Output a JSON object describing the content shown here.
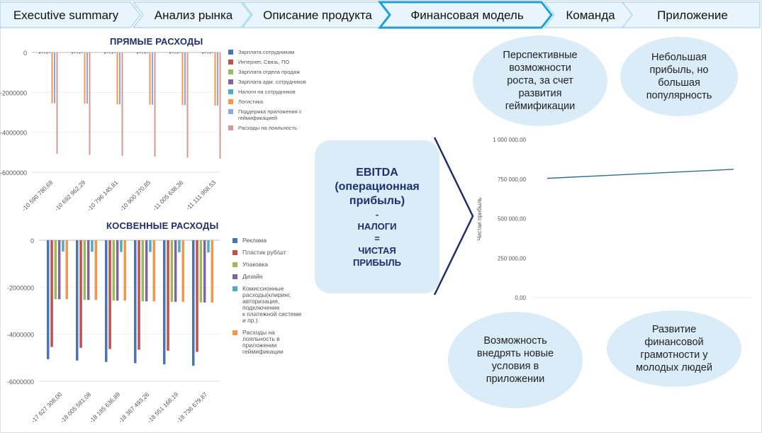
{
  "nav": {
    "tabs": [
      {
        "label": "Executive summary"
      },
      {
        "label": "Анализ рынка"
      },
      {
        "label": "Описание продукта"
      },
      {
        "label": "Финансовая модель",
        "active": true
      },
      {
        "label": "Команда"
      },
      {
        "label": "Приложение"
      }
    ],
    "colors": {
      "fill": "#e9f5fc",
      "stroke": "#9fd3ec",
      "active_stroke": "#1aa0d8"
    }
  },
  "ebitda_box": {
    "line1": "EBITDA",
    "line2": "(операционная",
    "line3": "прибыль)",
    "line4": "-",
    "line5": "НАЛОГИ",
    "line6": "=",
    "line7": "ЧИСТАЯ",
    "line8": "ПРИБЫЛЬ"
  },
  "bubbles": {
    "top_left": {
      "lines": [
        "Перспективные",
        "возможности",
        "роста, за счет",
        "развития",
        "геймификации"
      ]
    },
    "top_right": {
      "lines": [
        "Небольшая",
        "прибыль, но",
        "большая",
        "популярность"
      ]
    },
    "bottom_left": {
      "lines": [
        "Возможность",
        "внедрять новые",
        "условия в",
        "приложении"
      ]
    },
    "bottom_right": {
      "lines": [
        "Развитие",
        "финансовой",
        "грамотности у",
        "молодых людей"
      ]
    }
  },
  "chart_data": [
    {
      "type": "bar",
      "title": "ПРЯМЫЕ РАСХОДЫ",
      "categories": [
        "-10 590 780,69",
        "-10 692 962,29",
        "-10 796 145,81",
        "-10 900 370,85",
        "-11 005 638,36",
        "-11 111 958,53"
      ],
      "ylim": [
        -6000000,
        0
      ],
      "yticks": [
        "0",
        "-2000000",
        "-4000000",
        "-6000000"
      ],
      "legend_position": "right",
      "series": [
        {
          "name": "Зарплата сотрудникам",
          "color": "#4a73b8",
          "values": [
            -60000,
            -60000,
            -60000,
            -60000,
            -60000,
            -60000
          ]
        },
        {
          "name": "Интернет, Связь, ПО",
          "color": "#c0504d",
          "values": [
            -30000,
            -30000,
            -30000,
            -30000,
            -30000,
            -30000
          ]
        },
        {
          "name": "Зарплата отдела продаж",
          "color": "#9bbb59",
          "values": [
            -60000,
            -60000,
            -60000,
            -60000,
            -60000,
            -60000
          ]
        },
        {
          "name": "Зарплата адм. сотрудников",
          "color": "#8064a2",
          "values": [
            -60000,
            -60000,
            -60000,
            -60000,
            -60000,
            -60000
          ]
        },
        {
          "name": "Налоги на сотрудников",
          "color": "#4bacc6",
          "values": [
            -20000,
            -20000,
            -20000,
            -20000,
            -20000,
            -20000
          ]
        },
        {
          "name": "Логистика",
          "color": "#f79646",
          "values": [
            -2550000,
            -2570000,
            -2600000,
            -2620000,
            -2640000,
            -2670000
          ]
        },
        {
          "name": "Поддержка приложения с геймификацией",
          "color": "#8ea9d6",
          "values": [
            -2550000,
            -2570000,
            -2600000,
            -2620000,
            -2640000,
            -2670000
          ]
        },
        {
          "name": "Расходы на лояльность",
          "color": "#d99694",
          "values": [
            -5080000,
            -5130000,
            -5180000,
            -5220000,
            -5270000,
            -5320000
          ]
        }
      ]
    },
    {
      "type": "bar",
      "title": "КОСВЕННЫЕ РАСХОДЫ",
      "categories": [
        "-17 627 308,00",
        "-18 005 581,08",
        "-18 185 636,89",
        "-18 367 493,26",
        "-18 551 168,19",
        "-18 736 679,87"
      ],
      "ylim": [
        -6000000,
        0
      ],
      "yticks": [
        "0",
        "-2000000",
        "-4000000",
        "-6000000"
      ],
      "legend_position": "right",
      "series": [
        {
          "name": "Реклама",
          "color": "#4a73b8",
          "values": [
            -5060000,
            -5120000,
            -5180000,
            -5230000,
            -5280000,
            -5340000
          ]
        },
        {
          "name": "Пластик руб/шт",
          "color": "#c0504d",
          "values": [
            -4540000,
            -4580000,
            -4630000,
            -4660000,
            -4700000,
            -4750000
          ]
        },
        {
          "name": "Упаковка",
          "color": "#9bbb59",
          "values": [
            -2510000,
            -2540000,
            -2570000,
            -2600000,
            -2620000,
            -2650000
          ]
        },
        {
          "name": "Дизайн",
          "color": "#8064a2",
          "values": [
            -2510000,
            -2540000,
            -2570000,
            -2600000,
            -2620000,
            -2650000
          ]
        },
        {
          "name": "Комиссионные расходы(клиринг, авторизация, подключение к платежной системе и пр.)",
          "color": "#4bacc6",
          "values": [
            -480000,
            -490000,
            -500000,
            -500000,
            -510000,
            -520000
          ]
        },
        {
          "name": "Расходы на лояльность в приложении геймификации",
          "color": "#f79646",
          "values": [
            -2510000,
            -2540000,
            -2570000,
            -2600000,
            -2620000,
            -2650000
          ]
        }
      ]
    },
    {
      "type": "line",
      "title": "",
      "ylabel": "Чистая прибыль",
      "ylim": [
        0,
        1000000
      ],
      "yticks": [
        "1 000 000,00",
        "750 000,00",
        "500 000,00",
        "250 000,00",
        "0,00"
      ],
      "series": [
        {
          "color": "#2e6f8e",
          "x": [
            1,
            2
          ],
          "values": [
            755000,
            812000
          ]
        }
      ]
    }
  ]
}
